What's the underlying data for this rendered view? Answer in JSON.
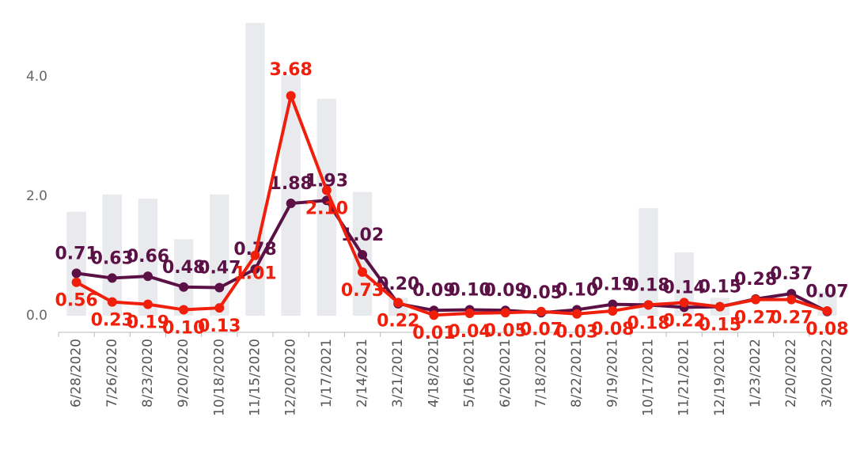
{
  "chart_data": {
    "type": "line",
    "categories": [
      "6/28/2020",
      "7/26/2020",
      "8/23/2020",
      "9/20/2020",
      "10/18/2020",
      "11/15/2020",
      "12/20/2020",
      "1/17/2021",
      "2/14/2021",
      "3/21/2021",
      "4/18/2021",
      "5/16/2021",
      "6/20/2021",
      "7/18/2021",
      "8/22/2021",
      "9/19/2021",
      "10/17/2021",
      "11/21/2021",
      "12/19/2021",
      "1/23/2022",
      "2/20/2022",
      "3/20/2022"
    ],
    "ylim": [
      0,
      5
    ],
    "yticks": [
      {
        "value": 0,
        "label": "0.0"
      },
      {
        "value": 2,
        "label": "2.0"
      },
      {
        "value": 4,
        "label": "4.0"
      }
    ],
    "bars": {
      "color": "#e9eaed",
      "values": [
        1.74,
        2.03,
        1.96,
        1.28,
        2.03,
        4.9,
        4.03,
        3.63,
        2.07,
        0.3,
        0,
        0,
        0,
        0,
        0,
        0,
        1.8,
        1.06,
        0.3,
        0,
        0,
        0.4
      ]
    },
    "series": [
      {
        "color": "#5b1146",
        "values": [
          0.71,
          0.63,
          0.66,
          0.48,
          0.47,
          0.78,
          1.88,
          1.93,
          1.02,
          0.2,
          0.09,
          0.1,
          0.09,
          0.05,
          0.1,
          0.19,
          0.18,
          0.14,
          0.15,
          0.28,
          0.37,
          0.07
        ],
        "value_labels": [
          "0.71",
          "0.63",
          "0.66",
          "0.48",
          "0.47",
          "0.78",
          "1.88",
          "1.93",
          "1.02",
          "0.20",
          "0.09",
          "0.10",
          "0.09",
          "0.05",
          "0.10",
          "0.19",
          "0.18",
          "0.14",
          "0.15",
          "0.28",
          "0.37",
          "0.07"
        ]
      },
      {
        "color": "#f01f0c",
        "values": [
          0.56,
          0.23,
          0.19,
          0.1,
          0.13,
          1.01,
          3.68,
          2.1,
          0.73,
          0.22,
          0.01,
          0.04,
          0.05,
          0.07,
          0.03,
          0.08,
          0.18,
          0.22,
          0.15,
          0.27,
          0.27,
          0.08
        ],
        "value_labels": [
          "0.56",
          "0.23",
          "0.19",
          "0.10",
          "0.13",
          "1.01",
          "3.68",
          "2.10",
          "0.73",
          "0.22",
          "0.01",
          "0.04",
          "0.05",
          "0.07",
          "0.03",
          "0.08",
          "0.18",
          "0.22",
          "0.15",
          "0.27",
          "0.27",
          "0.08"
        ]
      }
    ]
  }
}
